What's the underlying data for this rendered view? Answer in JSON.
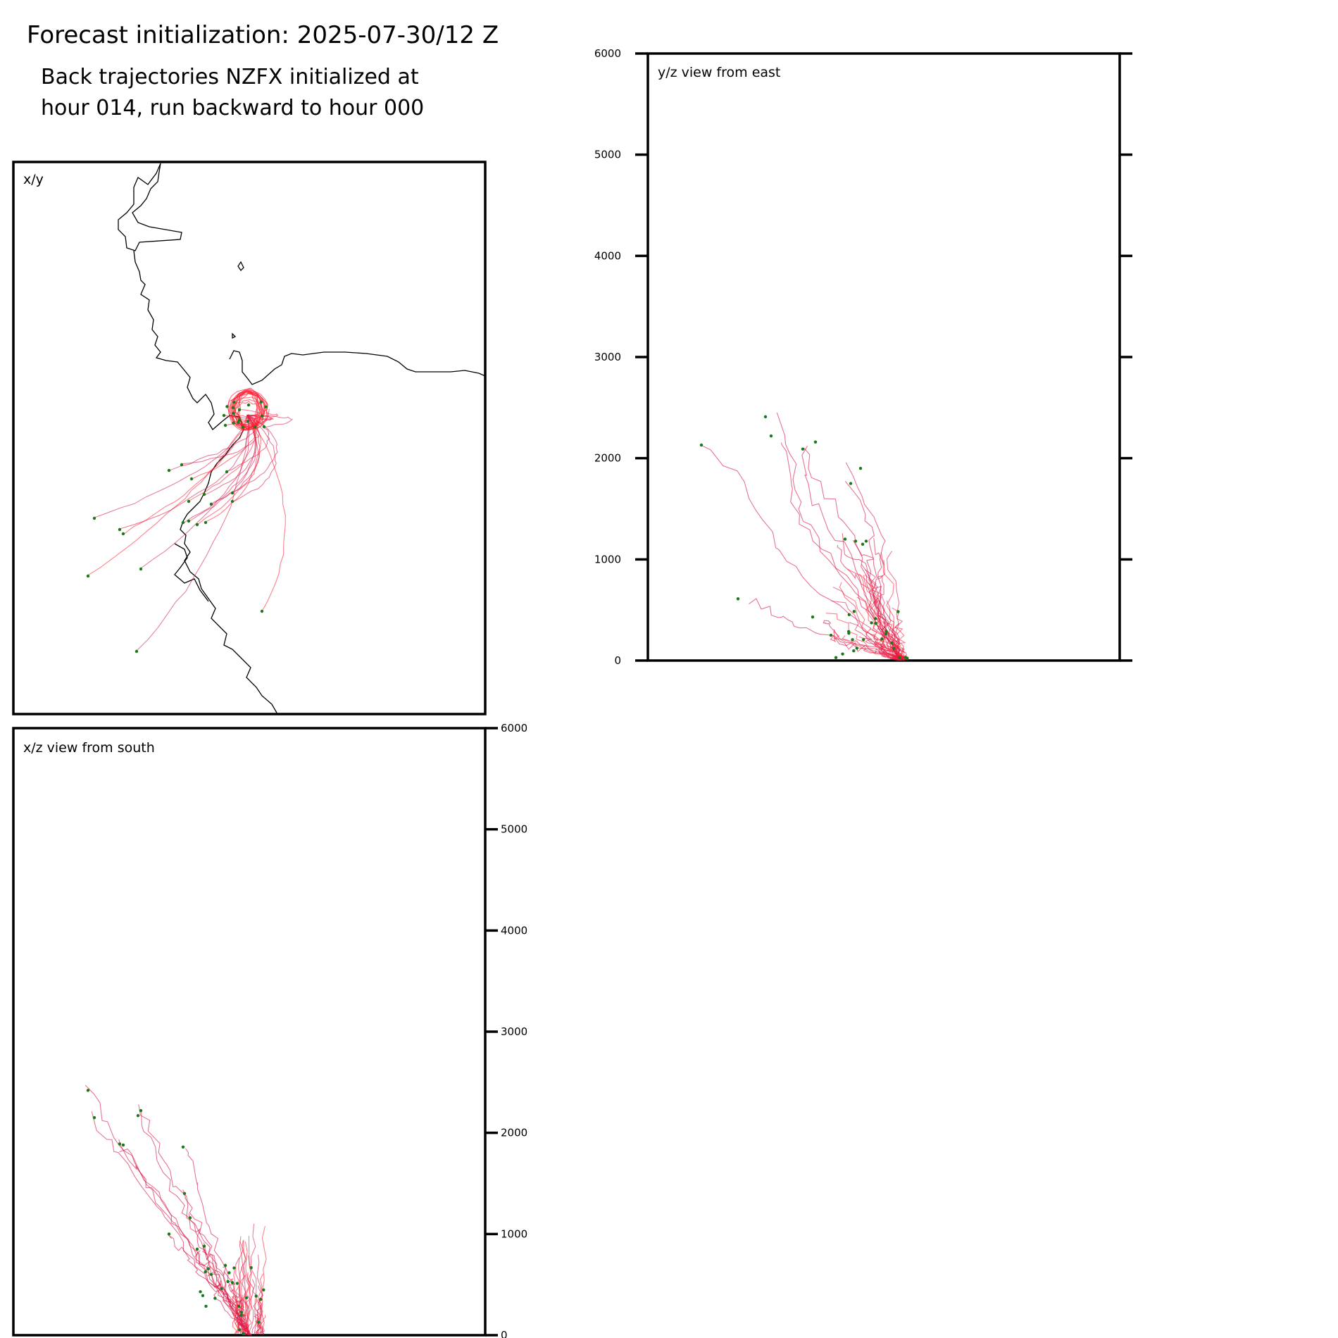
{
  "title": "Forecast initialization: 2025-07-30/12 Z",
  "subtitle": [
    "Back trajectories NZFX initialized at",
    "hour 014, run backward to hour 000"
  ],
  "colors": {
    "trajectory": "#d6174a",
    "trajectory_bright": "#ff1a2e",
    "endpoint": "#1a7a1a",
    "coast": "#000000",
    "frame": "#000000"
  },
  "chart_data": [
    {
      "type": "line",
      "panel": "x/y",
      "label": "x/y",
      "title": "",
      "xlabel": "",
      "ylabel": "",
      "grid": false,
      "notes": "map view with coastline; trajectories converge on the release point"
    },
    {
      "type": "line",
      "panel": "y/z",
      "label": "y/z view from east",
      "title": "",
      "xlabel": "",
      "ylabel": "",
      "ylim": [
        0,
        6000
      ],
      "yticks": [
        0,
        1000,
        2000,
        3000,
        4000,
        5000,
        6000
      ],
      "ytick_side": "left",
      "grid": false
    },
    {
      "type": "line",
      "panel": "x/z",
      "label": "x/z view from south",
      "title": "",
      "xlabel": "",
      "ylabel": "",
      "ylim": [
        0,
        6000
      ],
      "yticks": [
        0,
        1000,
        2000,
        3000,
        4000,
        5000,
        6000
      ],
      "ytick_side": "right",
      "grid": false
    }
  ]
}
